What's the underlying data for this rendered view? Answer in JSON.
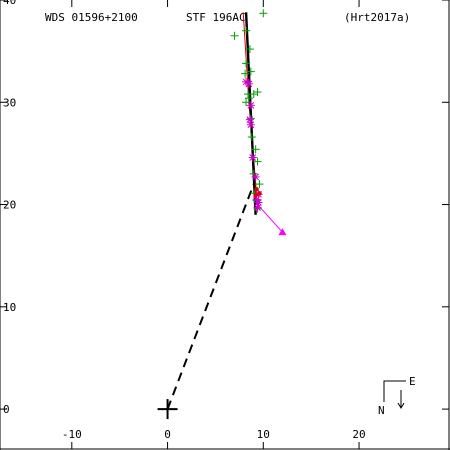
{
  "header": {
    "left": "WDS 01596+2100",
    "center": "STF 196AC",
    "right": "(Hrt2017a)"
  },
  "compass": {
    "east": "E",
    "north": "N"
  },
  "colors": {
    "background": "#ffffff",
    "axes": "#000000",
    "measure_plus": "#00a000",
    "measure_star": "#d000d0",
    "measure_red": "#e00000",
    "orbit_fit": "#e00000",
    "latest": "#ff00ff"
  },
  "chart_data": {
    "type": "scatter",
    "xlim": [
      -17.5,
      29.5
    ],
    "ylim": [
      -4,
      40
    ],
    "x_ticks": [
      -10,
      0,
      10,
      20
    ],
    "y_ticks": [
      0,
      10,
      20,
      30,
      40
    ],
    "x_tick_labels": [
      "-10",
      "0",
      "10",
      "20"
    ],
    "y_tick_labels": [
      "0",
      "10",
      "20",
      "30",
      "40"
    ],
    "primary": {
      "x": 0,
      "y": 0
    },
    "series": [
      {
        "marker": "plus",
        "points": [
          [
            7,
            36.5
          ],
          [
            10,
            38.7
          ],
          [
            8.2,
            37
          ],
          [
            8.6,
            35.2
          ],
          [
            8.2,
            33.8
          ],
          [
            8.1,
            32.8
          ],
          [
            8.7,
            33
          ],
          [
            8.4,
            30.8
          ],
          [
            8.5,
            30.4
          ],
          [
            8.2,
            30
          ],
          [
            9,
            30.8
          ],
          [
            9.4,
            31
          ],
          [
            8.7,
            28.4
          ],
          [
            8.8,
            26.6
          ],
          [
            9.2,
            25.4
          ],
          [
            9.4,
            24.2
          ],
          [
            9,
            23
          ],
          [
            9.6,
            22
          ],
          [
            9.1,
            21.1
          ],
          [
            9.3,
            20.4
          ],
          [
            9.4,
            19.6
          ]
        ]
      },
      {
        "marker": "star",
        "points": [
          [
            8.2,
            32
          ],
          [
            8.5,
            31.8
          ],
          [
            8.7,
            29.7
          ],
          [
            8.6,
            28.3
          ],
          [
            8.7,
            27.8
          ],
          [
            8.9,
            24.6
          ],
          [
            9.2,
            22.7
          ],
          [
            9.5,
            21
          ],
          [
            9.3,
            20.5
          ],
          [
            9.5,
            20.2
          ],
          [
            9.4,
            19.7
          ]
        ]
      },
      {
        "marker": "dot",
        "points": [
          [
            9.3,
            21.5
          ],
          [
            9.6,
            21.1
          ],
          [
            9.2,
            20.9
          ]
        ]
      }
    ],
    "fit_line": [
      [
        8.2,
        38.8
      ],
      [
        9.2,
        19
      ]
    ],
    "orbit_curve": [
      [
        7.9,
        38.8
      ],
      [
        8.5,
        30
      ],
      [
        9.3,
        21
      ]
    ],
    "latest_segment": {
      "from": [
        9.5,
        19.9
      ],
      "to": [
        12,
        17.3
      ]
    },
    "projection_line": {
      "from": [
        0,
        0
      ],
      "to": [
        9,
        22
      ]
    }
  }
}
